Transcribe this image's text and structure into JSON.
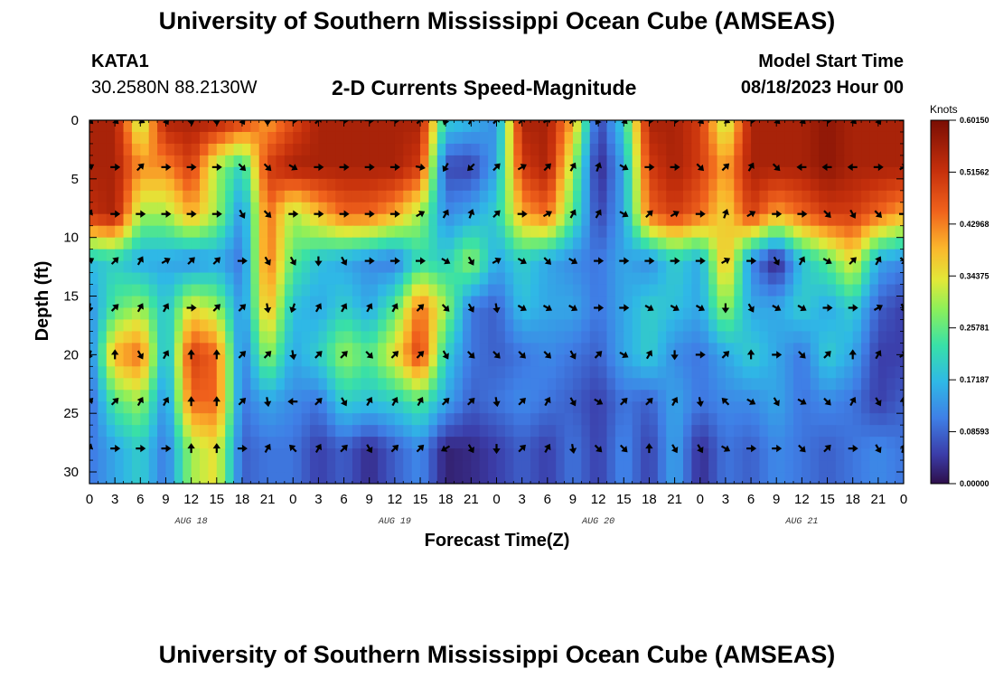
{
  "header": {
    "title": "University of Southern Mississippi Ocean Cube (AMSEAS)",
    "station": "KATA1",
    "location": "30.2580N  88.2130W",
    "subtitle": "2-D Currents Speed-Magnitude",
    "model_start_label": "Model Start Time",
    "model_start_value": "08/18/2023 Hour 00"
  },
  "footer": {
    "title": "University of Southern Mississippi Ocean Cube (AMSEAS)"
  },
  "chart_data": {
    "type": "heatmap",
    "title": "2-D Currents Speed-Magnitude",
    "xlabel": "Forecast Time(Z)",
    "ylabel": "Depth (ft)",
    "xlim": [
      0,
      96
    ],
    "ylim": [
      31,
      0
    ],
    "x_ticks": [
      0,
      3,
      6,
      9,
      12,
      15,
      18,
      21,
      24,
      27,
      30,
      33,
      36,
      39,
      42,
      45,
      48,
      51,
      54,
      57,
      60,
      63,
      66,
      69,
      72,
      75,
      78,
      81,
      84,
      87,
      90,
      93,
      96
    ],
    "x_tick_labels": [
      "0",
      "3",
      "6",
      "9",
      "12",
      "15",
      "18",
      "21",
      "0",
      "3",
      "6",
      "9",
      "12",
      "15",
      "18",
      "21",
      "0",
      "3",
      "6",
      "9",
      "12",
      "15",
      "18",
      "21",
      "0",
      "3",
      "6",
      "9",
      "12",
      "15",
      "18",
      "21",
      "0"
    ],
    "date_labels": [
      {
        "hour": 12,
        "label": "AUG 18"
      },
      {
        "hour": 36,
        "label": "AUG 19"
      },
      {
        "hour": 60,
        "label": "AUG 20"
      },
      {
        "hour": 84,
        "label": "AUG 21"
      }
    ],
    "y_ticks": [
      0,
      5,
      10,
      15,
      20,
      25,
      30
    ],
    "y_tick_labels": [
      "0",
      "5",
      "10",
      "15",
      "20",
      "25",
      "30"
    ],
    "depths_ft": [
      0,
      4,
      8,
      12,
      16,
      20,
      24,
      28
    ],
    "hours": [
      0,
      3,
      6,
      9,
      12,
      15,
      18,
      21,
      24,
      27,
      30,
      33,
      36,
      39,
      42,
      45,
      48,
      51,
      54,
      57,
      60,
      63,
      66,
      69,
      72,
      75,
      78,
      81,
      84,
      87,
      90,
      93,
      96
    ],
    "speed_knots": [
      [
        0.55,
        0.55,
        0.3,
        0.55,
        0.55,
        0.55,
        0.5,
        0.4,
        0.48,
        0.55,
        0.55,
        0.55,
        0.55,
        0.55,
        0.2,
        0.17,
        0.12,
        0.55,
        0.55,
        0.4,
        0.05,
        0.2,
        0.55,
        0.55,
        0.5,
        0.3,
        0.55,
        0.55,
        0.55,
        0.58,
        0.55,
        0.55,
        0.55
      ],
      [
        0.55,
        0.55,
        0.42,
        0.42,
        0.5,
        0.3,
        0.2,
        0.5,
        0.55,
        0.55,
        0.55,
        0.55,
        0.55,
        0.5,
        0.06,
        0.05,
        0.15,
        0.5,
        0.55,
        0.3,
        0.02,
        0.15,
        0.5,
        0.55,
        0.5,
        0.4,
        0.55,
        0.55,
        0.55,
        0.58,
        0.55,
        0.55,
        0.55
      ],
      [
        0.52,
        0.55,
        0.3,
        0.3,
        0.4,
        0.3,
        0.12,
        0.45,
        0.3,
        0.38,
        0.45,
        0.45,
        0.4,
        0.3,
        0.12,
        0.15,
        0.2,
        0.4,
        0.45,
        0.25,
        0.05,
        0.15,
        0.45,
        0.5,
        0.45,
        0.35,
        0.5,
        0.4,
        0.45,
        0.5,
        0.5,
        0.45,
        0.4
      ],
      [
        0.18,
        0.2,
        0.15,
        0.15,
        0.12,
        0.15,
        0.1,
        0.45,
        0.25,
        0.18,
        0.15,
        0.12,
        0.1,
        0.22,
        0.2,
        0.3,
        0.15,
        0.2,
        0.15,
        0.12,
        0.1,
        0.15,
        0.12,
        0.2,
        0.15,
        0.4,
        0.12,
        0.01,
        0.18,
        0.25,
        0.35,
        0.15,
        0.12
      ],
      [
        0.12,
        0.25,
        0.3,
        0.18,
        0.35,
        0.3,
        0.12,
        0.4,
        0.18,
        0.15,
        0.2,
        0.15,
        0.25,
        0.45,
        0.3,
        0.1,
        0.08,
        0.18,
        0.15,
        0.15,
        0.1,
        0.15,
        0.2,
        0.18,
        0.15,
        0.3,
        0.15,
        0.15,
        0.2,
        0.15,
        0.2,
        0.08,
        0.05
      ],
      [
        0.1,
        0.4,
        0.45,
        0.15,
        0.5,
        0.45,
        0.1,
        0.3,
        0.15,
        0.2,
        0.3,
        0.25,
        0.35,
        0.5,
        0.2,
        0.1,
        0.08,
        0.1,
        0.12,
        0.1,
        0.08,
        0.15,
        0.2,
        0.12,
        0.1,
        0.15,
        0.2,
        0.15,
        0.1,
        0.2,
        0.15,
        0.05,
        0.05
      ],
      [
        0.08,
        0.25,
        0.3,
        0.12,
        0.45,
        0.45,
        0.1,
        0.15,
        0.12,
        0.1,
        0.2,
        0.18,
        0.2,
        0.25,
        0.15,
        0.08,
        0.1,
        0.12,
        0.1,
        0.08,
        0.05,
        0.1,
        0.08,
        0.15,
        0.1,
        0.12,
        0.12,
        0.15,
        0.1,
        0.12,
        0.1,
        0.05,
        0.08
      ],
      [
        0.1,
        0.15,
        0.2,
        0.1,
        0.3,
        0.35,
        0.08,
        0.1,
        0.1,
        0.05,
        0.08,
        0.03,
        0.08,
        0.12,
        0.02,
        0.03,
        0.05,
        0.08,
        0.05,
        0.1,
        0.05,
        0.12,
        0.05,
        0.15,
        0.03,
        0.1,
        0.08,
        0.12,
        0.1,
        0.08,
        0.1,
        0.12,
        0.1
      ]
    ],
    "arrow_depths_ft": [
      0,
      4,
      8,
      12,
      16,
      20,
      24,
      28
    ],
    "arrow_direction_deg": [
      [
        135,
        135,
        120,
        150,
        170,
        175,
        150,
        180,
        90,
        45,
        90,
        90,
        90,
        45,
        200,
        30,
        45,
        45,
        60,
        45,
        210,
        135,
        90,
        90,
        135,
        120,
        90,
        135,
        135,
        90,
        135,
        150,
        90
      ],
      [
        60,
        90,
        45,
        90,
        90,
        90,
        135,
        135,
        120,
        90,
        90,
        90,
        90,
        100,
        210,
        225,
        45,
        60,
        45,
        30,
        20,
        120,
        90,
        90,
        135,
        45,
        30,
        135,
        270,
        270,
        270,
        90,
        60
      ],
      [
        30,
        90,
        90,
        90,
        90,
        90,
        150,
        135,
        90,
        90,
        90,
        90,
        90,
        60,
        30,
        20,
        45,
        90,
        60,
        30,
        30,
        120,
        45,
        60,
        90,
        20,
        60,
        90,
        90,
        135,
        150,
        135,
        90
      ],
      [
        60,
        45,
        30,
        60,
        45,
        45,
        90,
        150,
        150,
        180,
        150,
        90,
        90,
        90,
        120,
        150,
        60,
        120,
        135,
        120,
        90,
        90,
        90,
        90,
        90,
        60,
        90,
        150,
        30,
        120,
        45,
        30,
        135
      ],
      [
        190,
        45,
        30,
        30,
        90,
        45,
        45,
        170,
        200,
        30,
        30,
        30,
        30,
        45,
        135,
        150,
        170,
        120,
        120,
        120,
        90,
        90,
        120,
        120,
        120,
        180,
        150,
        120,
        120,
        90,
        90,
        60,
        150
      ],
      [
        200,
        0,
        150,
        30,
        0,
        0,
        45,
        45,
        170,
        45,
        45,
        135,
        45,
        45,
        150,
        135,
        135,
        135,
        135,
        150,
        45,
        120,
        30,
        180,
        90,
        45,
        0,
        90,
        135,
        45,
        0,
        30,
        60
      ],
      [
        45,
        45,
        30,
        30,
        0,
        0,
        45,
        170,
        270,
        45,
        150,
        30,
        30,
        30,
        45,
        45,
        170,
        45,
        30,
        150,
        120,
        45,
        45,
        30,
        170,
        315,
        120,
        150,
        120,
        135,
        30,
        150,
        0
      ],
      [
        20,
        90,
        90,
        90,
        0,
        0,
        90,
        30,
        315,
        30,
        45,
        150,
        45,
        45,
        240,
        150,
        180,
        45,
        30,
        170,
        135,
        135,
        0,
        150,
        150,
        120,
        90,
        90,
        135,
        45,
        90,
        150,
        20
      ]
    ],
    "colorbar": {
      "title": "Knots",
      "min": 0.0,
      "max": 0.6015,
      "tick_values": [
        0.6015,
        0.51562,
        0.42968,
        0.34375,
        0.25781,
        0.17187,
        0.08593,
        0.0
      ],
      "tick_labels": [
        "0.60150",
        "0.51562",
        "0.42968",
        "0.34375",
        "0.25781",
        "0.17187",
        "0.08593",
        "0.00000"
      ]
    }
  }
}
